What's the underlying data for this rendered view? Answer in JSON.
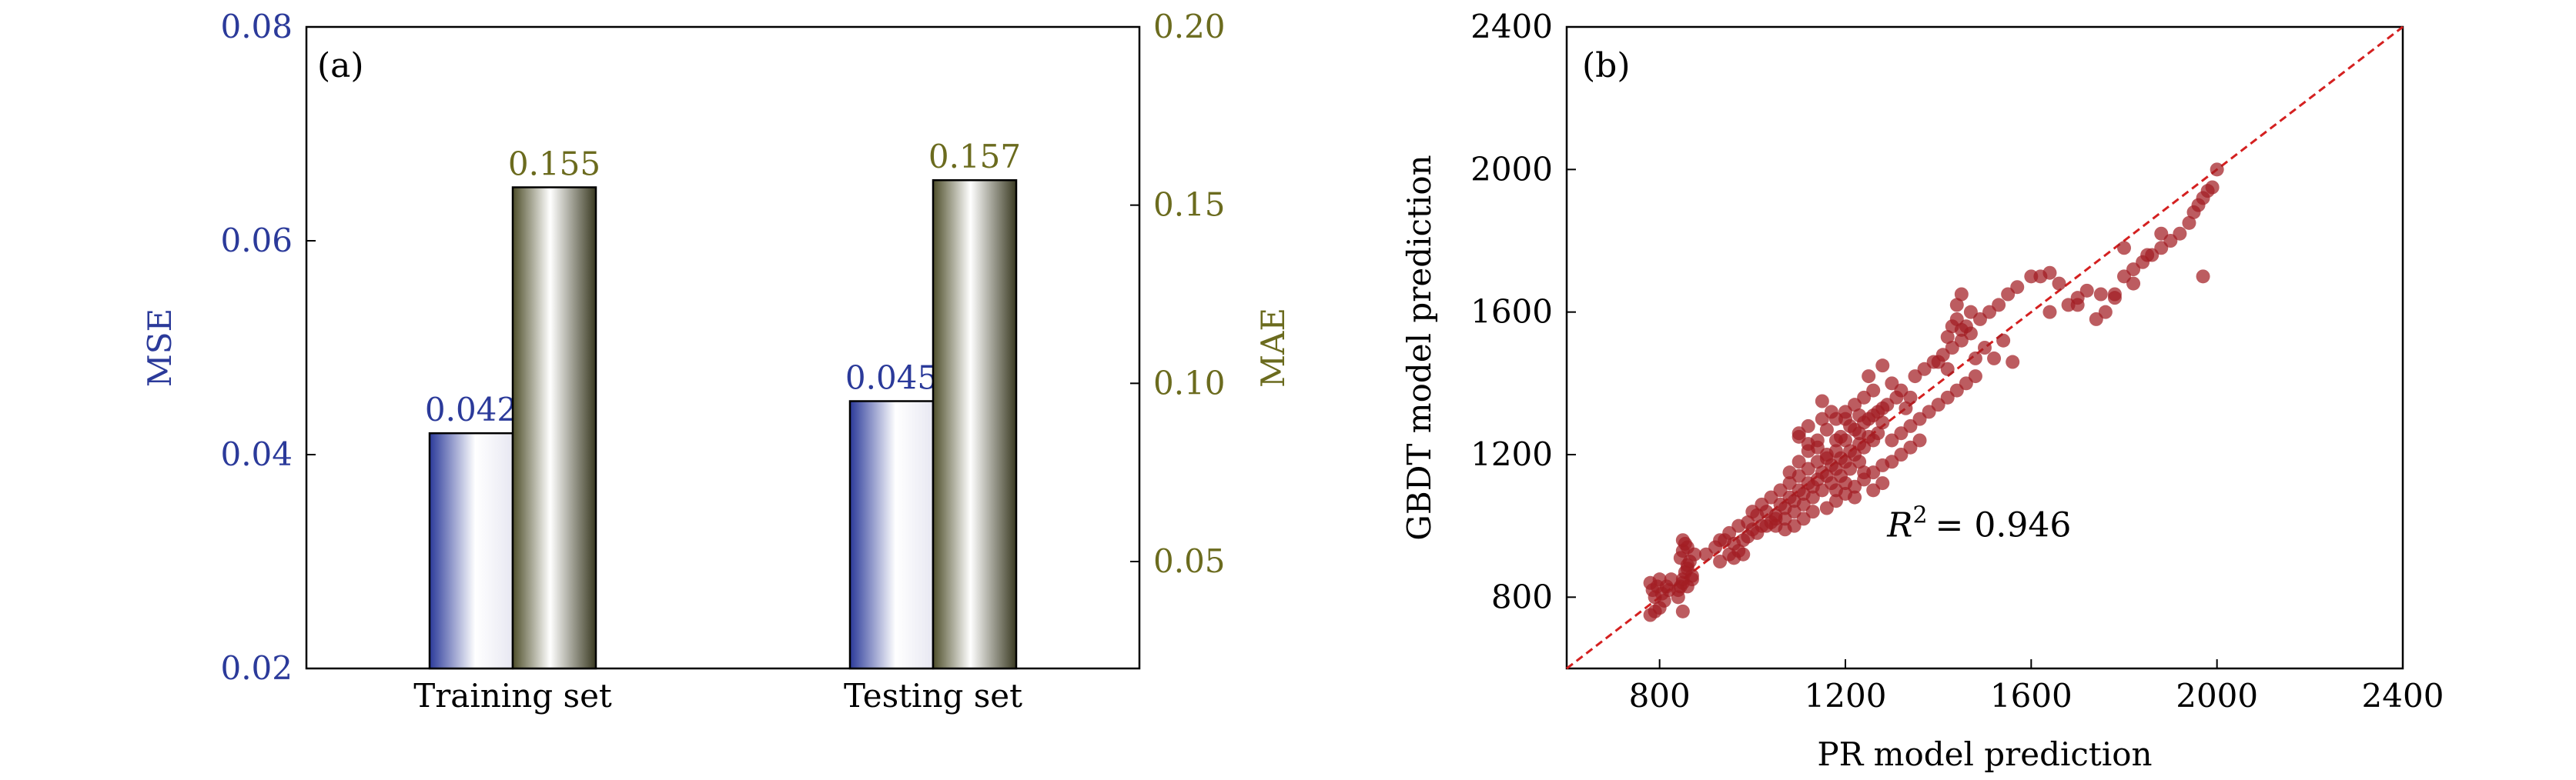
{
  "chart_data": [
    {
      "panel_label": "(a)",
      "type": "bar",
      "categories": [
        "Training set",
        "Testing set"
      ],
      "series": [
        {
          "axis": "left",
          "values": [
            0.042,
            0.045
          ],
          "labels": [
            "0.042",
            "0.045"
          ],
          "color": "#2b3a9a"
        },
        {
          "axis": "right",
          "values": [
            0.155,
            0.157
          ],
          "labels": [
            "0.155",
            "0.157"
          ],
          "color": "#4e4e2a"
        }
      ],
      "ylabel": "MSE",
      "ylim": [
        0.02,
        0.08
      ],
      "yticks": [
        0.02,
        0.04,
        0.06,
        0.08
      ],
      "ytick_labels": [
        "0.02",
        "0.04",
        "0.06",
        "0.08"
      ],
      "y2label": "MAE",
      "y2lim": [
        0.02,
        0.2
      ],
      "y2ticks": [
        0.05,
        0.1,
        0.15,
        0.2
      ],
      "y2tick_labels": [
        "0.05",
        "0.10",
        "0.15",
        "0.20"
      ],
      "left_axis_color": "#2b3a9a",
      "right_axis_color": "#6b6b1e"
    },
    {
      "panel_label": "(b)",
      "type": "scatter",
      "xlabel": "PR model prediction",
      "ylabel": "GBDT model prediction",
      "xlim": [
        600,
        2400
      ],
      "ylim": [
        600,
        2400
      ],
      "xticks": [
        800,
        1200,
        1600,
        2000,
        2400
      ],
      "yticks": [
        800,
        1200,
        1600,
        2000,
        2400
      ],
      "xtick_labels": [
        "800",
        "1200",
        "1600",
        "2000",
        "2400"
      ],
      "ytick_labels": [
        "800",
        "1200",
        "1600",
        "2000",
        "2400"
      ],
      "reference_line": [
        [
          600,
          600
        ],
        [
          2400,
          2400
        ]
      ],
      "annotation": {
        "text": "= 0.946",
        "symbol": "R",
        "exponent": "2",
        "x": 1290,
        "y": 1000
      },
      "point_color": "#a21d22",
      "line_color": "#d42020",
      "points": [
        [
          780,
          840
        ],
        [
          785,
          820
        ],
        [
          790,
          800
        ],
        [
          795,
          830
        ],
        [
          800,
          850
        ],
        [
          805,
          810
        ],
        [
          810,
          790
        ],
        [
          815,
          830
        ],
        [
          820,
          820
        ],
        [
          825,
          850
        ],
        [
          790,
          760
        ],
        [
          800,
          770
        ],
        [
          780,
          750
        ],
        [
          850,
          760
        ],
        [
          840,
          800
        ],
        [
          845,
          830
        ],
        [
          850,
          850
        ],
        [
          855,
          870
        ],
        [
          860,
          890
        ],
        [
          845,
          910
        ],
        [
          850,
          930
        ],
        [
          855,
          950
        ],
        [
          860,
          880
        ],
        [
          865,
          900
        ],
        [
          870,
          860
        ],
        [
          875,
          920
        ],
        [
          840,
          820
        ],
        [
          850,
          840
        ],
        [
          860,
          830
        ],
        [
          870,
          850
        ],
        [
          860,
          940
        ],
        [
          850,
          960
        ],
        [
          900,
          920
        ],
        [
          920,
          940
        ],
        [
          930,
          900
        ],
        [
          940,
          960
        ],
        [
          950,
          920
        ],
        [
          960,
          950
        ],
        [
          970,
          930
        ],
        [
          980,
          960
        ],
        [
          990,
          970
        ],
        [
          1000,
          990
        ],
        [
          1010,
          980
        ],
        [
          1020,
          1000
        ],
        [
          1030,
          1040
        ],
        [
          1040,
          1010
        ],
        [
          1050,
          1030
        ],
        [
          1060,
          1060
        ],
        [
          1070,
          1050
        ],
        [
          1080,
          1080
        ],
        [
          1090,
          1070
        ],
        [
          1100,
          1100
        ],
        [
          1110,
          1090
        ],
        [
          1120,
          1120
        ],
        [
          1130,
          1110
        ],
        [
          1140,
          1130
        ],
        [
          1150,
          1150
        ],
        [
          1160,
          1140
        ],
        [
          1170,
          1170
        ],
        [
          1180,
          1160
        ],
        [
          1190,
          1190
        ],
        [
          1200,
          1180
        ],
        [
          1210,
          1210
        ],
        [
          1220,
          1200
        ],
        [
          1230,
          1230
        ],
        [
          1240,
          1220
        ],
        [
          1250,
          1250
        ],
        [
          1260,
          1240
        ],
        [
          1270,
          1260
        ],
        [
          1280,
          1290
        ],
        [
          1000,
          1040
        ],
        [
          1020,
          1060
        ],
        [
          1040,
          1080
        ],
        [
          1060,
          1100
        ],
        [
          1080,
          1120
        ],
        [
          1100,
          1140
        ],
        [
          1120,
          1160
        ],
        [
          1140,
          1180
        ],
        [
          1160,
          1200
        ],
        [
          1180,
          1240
        ],
        [
          1050,
          1000
        ],
        [
          1070,
          1020
        ],
        [
          1090,
          1040
        ],
        [
          1110,
          1060
        ],
        [
          1130,
          1080
        ],
        [
          1150,
          1100
        ],
        [
          1170,
          1120
        ],
        [
          1190,
          1140
        ],
        [
          1210,
          1160
        ],
        [
          1230,
          1180
        ],
        [
          1080,
          1150
        ],
        [
          1100,
          1180
        ],
        [
          1120,
          1210
        ],
        [
          1140,
          1240
        ],
        [
          1160,
          1270
        ],
        [
          1180,
          1300
        ],
        [
          1200,
          1320
        ],
        [
          1220,
          1340
        ],
        [
          1240,
          1360
        ],
        [
          1260,
          1380
        ],
        [
          1100,
          1250
        ],
        [
          1120,
          1280
        ],
        [
          1150,
          1350
        ],
        [
          1200,
          1300
        ],
        [
          1230,
          1310
        ],
        [
          1250,
          1420
        ],
        [
          1280,
          1450
        ],
        [
          1300,
          1400
        ],
        [
          1320,
          1380
        ],
        [
          1340,
          1360
        ],
        [
          1300,
          1240
        ],
        [
          1320,
          1260
        ],
        [
          1340,
          1280
        ],
        [
          1360,
          1300
        ],
        [
          1380,
          1320
        ],
        [
          1400,
          1340
        ],
        [
          1420,
          1360
        ],
        [
          1440,
          1380
        ],
        [
          1460,
          1400
        ],
        [
          1480,
          1420
        ],
        [
          1350,
          1420
        ],
        [
          1370,
          1440
        ],
        [
          1390,
          1460
        ],
        [
          1410,
          1480
        ],
        [
          1430,
          1500
        ],
        [
          1450,
          1520
        ],
        [
          1470,
          1540
        ],
        [
          1430,
          1560
        ],
        [
          1440,
          1580
        ],
        [
          1450,
          1550
        ],
        [
          1420,
          1530
        ],
        [
          1460,
          1560
        ],
        [
          1440,
          1620
        ],
        [
          1450,
          1650
        ],
        [
          1470,
          1600
        ],
        [
          1490,
          1580
        ],
        [
          1510,
          1600
        ],
        [
          1530,
          1620
        ],
        [
          1550,
          1650
        ],
        [
          1570,
          1670
        ],
        [
          1400,
          1460
        ],
        [
          1420,
          1440
        ],
        [
          1480,
          1470
        ],
        [
          1500,
          1500
        ],
        [
          1520,
          1470
        ],
        [
          1540,
          1520
        ],
        [
          1560,
          1460
        ],
        [
          1600,
          1700
        ],
        [
          1620,
          1700
        ],
        [
          1640,
          1710
        ],
        [
          1660,
          1680
        ],
        [
          1680,
          1620
        ],
        [
          1700,
          1640
        ],
        [
          1720,
          1660
        ],
        [
          1740,
          1580
        ],
        [
          1760,
          1600
        ],
        [
          1780,
          1650
        ],
        [
          1800,
          1700
        ],
        [
          1820,
          1720
        ],
        [
          1840,
          1740
        ],
        [
          1860,
          1760
        ],
        [
          1880,
          1780
        ],
        [
          1900,
          1800
        ],
        [
          1920,
          1820
        ],
        [
          1940,
          1850
        ],
        [
          1960,
          1900
        ],
        [
          1970,
          1920
        ],
        [
          1980,
          1940
        ],
        [
          1990,
          1950
        ],
        [
          2000,
          2000
        ],
        [
          1700,
          1620
        ],
        [
          1750,
          1650
        ],
        [
          1800,
          1780
        ],
        [
          1850,
          1760
        ],
        [
          1880,
          1820
        ],
        [
          1950,
          1880
        ],
        [
          1970,
          1700
        ],
        [
          1640,
          1600
        ],
        [
          1780,
          1640
        ],
        [
          1820,
          1680
        ],
        [
          1090,
          1000
        ],
        [
          1110,
          1020
        ],
        [
          1130,
          1040
        ],
        [
          1160,
          1050
        ],
        [
          1180,
          1070
        ],
        [
          1200,
          1090
        ],
        [
          1220,
          1110
        ],
        [
          1240,
          1130
        ],
        [
          1260,
          1150
        ],
        [
          1280,
          1170
        ],
        [
          930,
          960
        ],
        [
          950,
          980
        ],
        [
          970,
          1000
        ],
        [
          990,
          1010
        ],
        [
          1010,
          1030
        ],
        [
          1030,
          1000
        ],
        [
          1050,
          1020
        ],
        [
          1070,
          990
        ],
        [
          960,
          910
        ],
        [
          980,
          920
        ],
        [
          1150,
          1300
        ],
        [
          1170,
          1320
        ],
        [
          1190,
          1250
        ],
        [
          1210,
          1280
        ],
        [
          1230,
          1260
        ],
        [
          1250,
          1300
        ],
        [
          1270,
          1320
        ],
        [
          1290,
          1340
        ],
        [
          1310,
          1360
        ],
        [
          1330,
          1330
        ],
        [
          1180,
          1100
        ],
        [
          1200,
          1120
        ],
        [
          1220,
          1080
        ],
        [
          1240,
          1150
        ],
        [
          1260,
          1100
        ],
        [
          1280,
          1120
        ],
        [
          1300,
          1180
        ],
        [
          1320,
          1200
        ],
        [
          1340,
          1220
        ],
        [
          1360,
          1240
        ],
        [
          1100,
          1260
        ],
        [
          1120,
          1230
        ],
        [
          1140,
          1220
        ],
        [
          1160,
          1190
        ],
        [
          1180,
          1210
        ],
        [
          1200,
          1240
        ],
        [
          1220,
          1270
        ],
        [
          1240,
          1290
        ],
        [
          1260,
          1310
        ],
        [
          1280,
          1330
        ]
      ]
    }
  ]
}
